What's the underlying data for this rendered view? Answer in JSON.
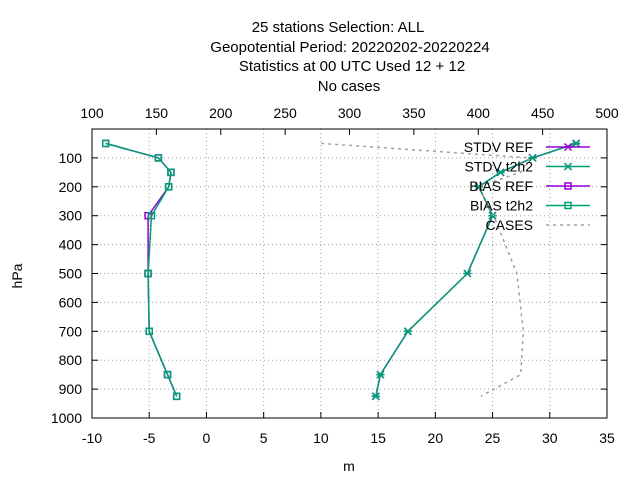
{
  "chart_data": {
    "type": "line",
    "title_lines": [
      "25 stations Selection: ALL",
      "Geopotential  Period: 20220202-20220224",
      "Statistics at 00 UTC  Used  12  + 12",
      "No cases"
    ],
    "xlabel": "m",
    "ylabel": "hPa",
    "xlim": [
      -10,
      35
    ],
    "x2lim": [
      100,
      500
    ],
    "ylim": [
      1000,
      0
    ],
    "xticks": [
      "-10",
      "-5",
      "0",
      "5",
      "10",
      "15",
      "20",
      "25",
      "30",
      "35"
    ],
    "x2ticks": [
      "100",
      "150",
      "200",
      "250",
      "300",
      "350",
      "400",
      "450",
      "500"
    ],
    "yticks": [
      "100",
      "200",
      "300",
      "400",
      "500",
      "600",
      "700",
      "800",
      "900",
      "1000"
    ],
    "grid": true,
    "legend_position": "top-right",
    "levels": [
      50,
      100,
      150,
      200,
      300,
      500,
      700,
      850,
      925
    ],
    "series": [
      {
        "name": "STDV REF",
        "axis": "x",
        "marker": "star",
        "color": "#9400d3",
        "values": [
          32.3,
          28.5,
          25.7,
          23.8,
          25.0,
          22.8,
          17.6,
          15.2,
          14.8
        ]
      },
      {
        "name": "STDV t2h2",
        "axis": "x",
        "marker": "star",
        "color": "#009e73",
        "values": [
          32.3,
          28.5,
          25.7,
          23.8,
          25.0,
          22.8,
          17.6,
          15.2,
          14.8
        ]
      },
      {
        "name": "BIAS REF",
        "axis": "x",
        "marker": "square",
        "color": "#9400d3",
        "values": [
          -8.8,
          -4.2,
          -3.1,
          -3.3,
          -5.1,
          -5.1,
          -5.0,
          -3.4,
          -2.6
        ]
      },
      {
        "name": "BIAS t2h2",
        "axis": "x",
        "marker": "square",
        "color": "#009e73",
        "values": [
          -8.8,
          -4.2,
          -3.1,
          -3.3,
          -4.8,
          -5.1,
          -5.0,
          -3.4,
          -2.6
        ]
      },
      {
        "name": "CASES",
        "axis": "x2",
        "marker": "none",
        "color": "#a0a0a0",
        "dashed": true,
        "points": [
          [
            278,
            50
          ],
          [
            440,
            100
          ],
          [
            433,
            150
          ],
          [
            400,
            200
          ],
          [
            412,
            300
          ],
          [
            430,
            500
          ],
          [
            435,
            700
          ],
          [
            433,
            850
          ],
          [
            402,
            925
          ]
        ]
      }
    ]
  }
}
